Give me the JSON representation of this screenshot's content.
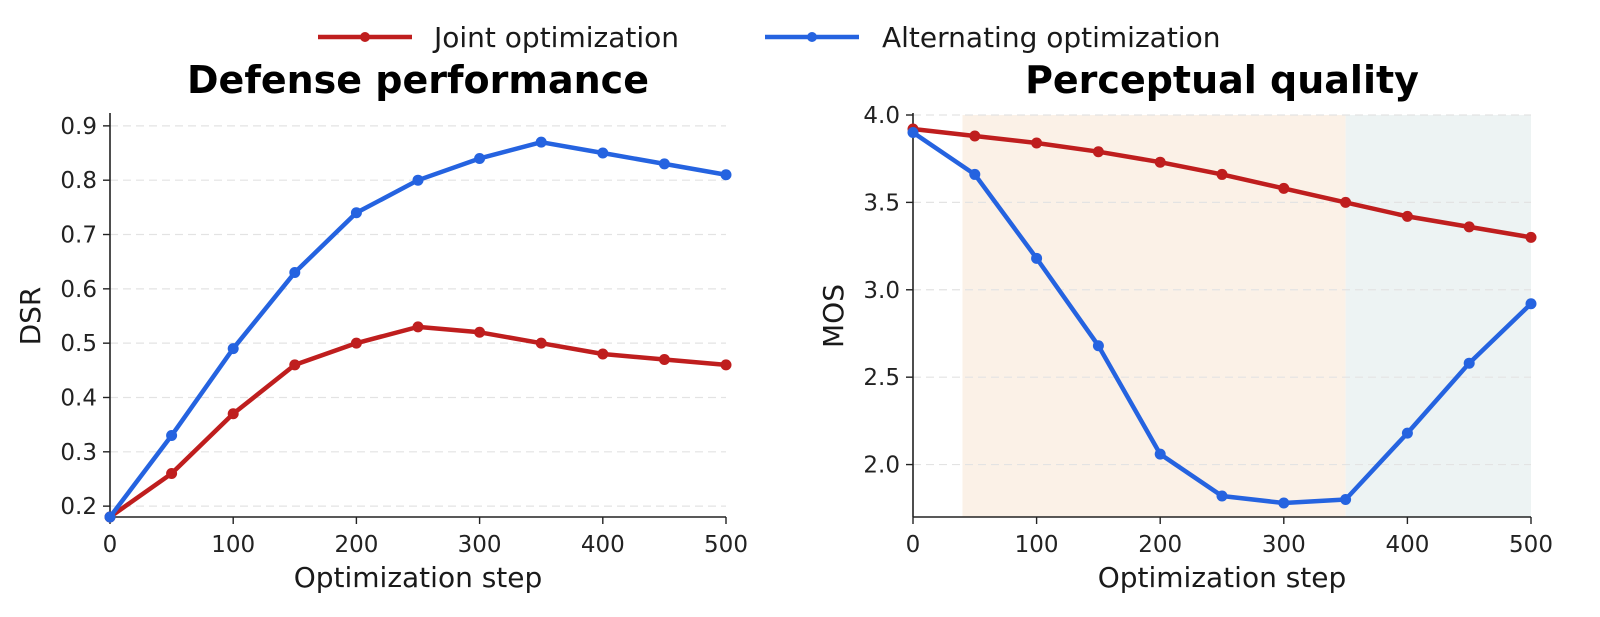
{
  "legend": [
    {
      "name": "Joint optimization",
      "color": "#bf1e1e"
    },
    {
      "name": "Alternating optimization",
      "color": "#2563e0"
    }
  ],
  "chart_data": [
    {
      "type": "line",
      "title": "Defense performance",
      "xlabel": "Optimization step",
      "ylabel": "DSR",
      "x": [
        0,
        50,
        100,
        150,
        200,
        250,
        300,
        350,
        400,
        450,
        500
      ],
      "xlim": [
        0,
        500
      ],
      "ylim": [
        0.18,
        0.92
      ],
      "xticks": [
        0,
        100,
        200,
        300,
        400,
        500
      ],
      "yticks": [
        0.2,
        0.3,
        0.4,
        0.5,
        0.6,
        0.7,
        0.8,
        0.9
      ],
      "grid": "horizontal dashed",
      "series": [
        {
          "name": "Joint optimization",
          "color": "#bf1e1e",
          "values": [
            0.18,
            0.26,
            0.37,
            0.46,
            0.5,
            0.53,
            0.52,
            0.5,
            0.48,
            0.47,
            0.46
          ]
        },
        {
          "name": "Alternating optimization",
          "color": "#2563e0",
          "values": [
            0.18,
            0.33,
            0.49,
            0.63,
            0.74,
            0.8,
            0.84,
            0.87,
            0.85,
            0.83,
            0.81
          ]
        }
      ]
    },
    {
      "type": "line",
      "title": "Perceptual quality",
      "xlabel": "Optimization step",
      "ylabel": "MOS",
      "x": [
        0,
        50,
        100,
        150,
        200,
        250,
        300,
        350,
        400,
        450,
        500
      ],
      "xlim": [
        0,
        500
      ],
      "ylim": [
        1.7,
        4.0
      ],
      "xticks": [
        0,
        100,
        200,
        300,
        400,
        500
      ],
      "yticks": [
        2.0,
        2.5,
        3.0,
        3.5,
        4.0
      ],
      "ytick_format": 1,
      "grid": "horizontal dashed",
      "shaded_regions": [
        {
          "x_from": 40,
          "x_to": 350,
          "color": "#fbf1e7"
        },
        {
          "x_from": 350,
          "x_to": 500,
          "color": "#edf3f3"
        }
      ],
      "series": [
        {
          "name": "Joint optimization",
          "color": "#bf1e1e",
          "values": [
            3.92,
            3.88,
            3.84,
            3.79,
            3.73,
            3.66,
            3.58,
            3.5,
            3.42,
            3.36,
            3.3
          ]
        },
        {
          "name": "Alternating optimization",
          "color": "#2563e0",
          "values": [
            3.9,
            3.66,
            3.18,
            2.68,
            2.06,
            1.82,
            1.78,
            1.8,
            2.18,
            2.58,
            2.92
          ]
        }
      ]
    }
  ]
}
